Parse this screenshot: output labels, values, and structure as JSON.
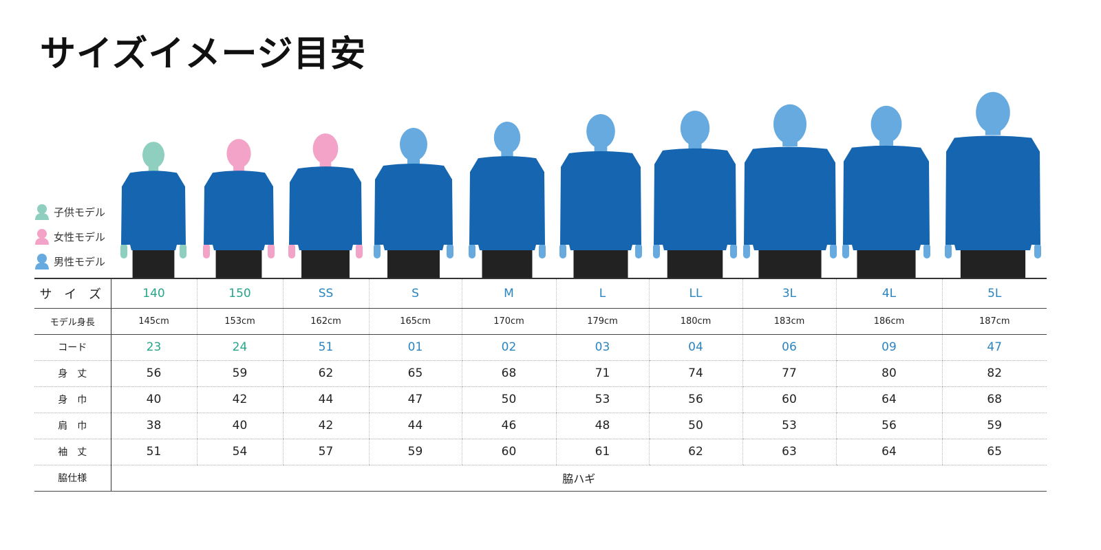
{
  "title": "サイズイメージ目安",
  "legend": [
    {
      "label": "子供モデル",
      "type": "kid",
      "color": "#8ecfbf"
    },
    {
      "label": "女性モデル",
      "type": "female",
      "color": "#f2a3c7"
    },
    {
      "label": "男性モデル",
      "type": "male",
      "color": "#66aadf"
    }
  ],
  "colors": {
    "shirt": "#1565b0",
    "shorts": "#222222",
    "kid_text": "#26a58a",
    "adult_text": "#2a85c0"
  },
  "models": [
    "kid",
    "female",
    "female",
    "male",
    "male",
    "male",
    "male",
    "male",
    "male",
    "male"
  ],
  "table": {
    "rows": [
      {
        "label": "サ イ ズ",
        "values": [
          "140",
          "150",
          "SS",
          "S",
          "M",
          "L",
          "LL",
          "3L",
          "4L",
          "5L"
        ],
        "colored": true
      },
      {
        "label": "モデル身長",
        "values": [
          "145cm",
          "153cm",
          "162cm",
          "165cm",
          "170cm",
          "179cm",
          "180cm",
          "183cm",
          "186cm",
          "187cm"
        ]
      },
      {
        "label": "コード",
        "values": [
          "23",
          "24",
          "51",
          "01",
          "02",
          "03",
          "04",
          "06",
          "09",
          "47"
        ],
        "colored": true
      },
      {
        "label": "身　丈",
        "values": [
          "56",
          "59",
          "62",
          "65",
          "68",
          "71",
          "74",
          "77",
          "80",
          "82"
        ]
      },
      {
        "label": "身　巾",
        "values": [
          "40",
          "42",
          "44",
          "47",
          "50",
          "53",
          "56",
          "60",
          "64",
          "68"
        ]
      },
      {
        "label": "肩　巾",
        "values": [
          "38",
          "40",
          "42",
          "44",
          "46",
          "48",
          "50",
          "53",
          "56",
          "59"
        ]
      },
      {
        "label": "袖　丈",
        "values": [
          "51",
          "54",
          "57",
          "59",
          "60",
          "61",
          "62",
          "63",
          "64",
          "65"
        ]
      }
    ],
    "side": {
      "label": "脇仕様",
      "value": "脇ハギ"
    }
  }
}
